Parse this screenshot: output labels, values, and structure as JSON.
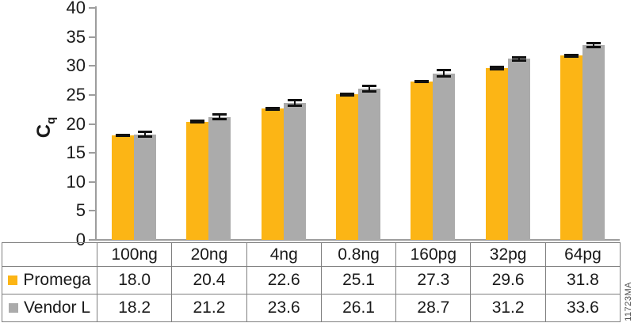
{
  "figure_id": "11723MA",
  "chart_data": {
    "type": "bar",
    "title": "",
    "ylabel_main": "C",
    "ylabel_sub": "q",
    "ylim": [
      0,
      40
    ],
    "ytick_step": 5,
    "yticks": [
      "0",
      "5",
      "10",
      "15",
      "20",
      "25",
      "30",
      "35",
      "40"
    ],
    "grid": false,
    "legend_position": "table-left",
    "categories": [
      "100ng",
      "20ng",
      "4ng",
      "0.8ng",
      "160pg",
      "32pg",
      "64pg"
    ],
    "series": [
      {
        "name": "Promega",
        "color": "#FCB515",
        "values": [
          18.0,
          20.4,
          22.6,
          25.1,
          27.3,
          29.6,
          31.8
        ],
        "labels": [
          "18.0",
          "20.4",
          "22.6",
          "25.1",
          "27.3",
          "29.6",
          "31.8"
        ],
        "errors": [
          0.15,
          0.2,
          0.15,
          0.2,
          0.2,
          0.3,
          0.2
        ]
      },
      {
        "name": "Vendor L",
        "color": "#ABABAB",
        "values": [
          18.2,
          21.2,
          23.6,
          26.1,
          28.7,
          31.2,
          33.6
        ],
        "labels": [
          "18.2",
          "21.2",
          "23.6",
          "26.1",
          "28.7",
          "31.2",
          "33.6"
        ],
        "errors": [
          0.5,
          0.45,
          0.55,
          0.55,
          0.6,
          0.3,
          0.45
        ]
      }
    ]
  },
  "colors": {
    "promega_bar": "#FCB515",
    "vendor_bar": "#ABABAB",
    "axis": "#9d9d9d",
    "table_border": "#7f7f7f",
    "error_bar": "#111111",
    "text": "#1a1a1a"
  }
}
